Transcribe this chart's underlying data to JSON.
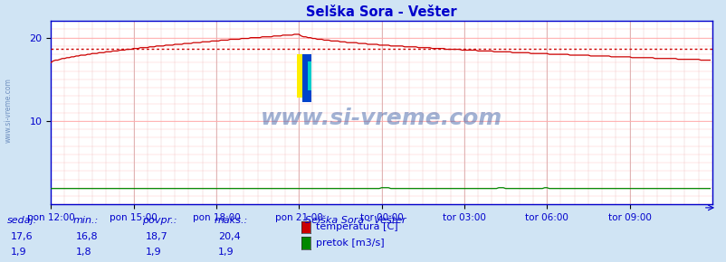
{
  "title": "Selška Sora - Vešter",
  "title_color": "#0000cc",
  "bg_color": "#d0e4f4",
  "plot_bg_color": "#ffffff",
  "grid_color": "#ffaaaa",
  "grid_color_v": "#ddaaaa",
  "watermark": "www.si-vreme.com",
  "watermark_color": "#4466aa",
  "watermark_alpha": 0.5,
  "x_tick_labels": [
    "pon 12:00",
    "pon 15:00",
    "pon 18:00",
    "pon 21:00",
    "tor 00:00",
    "tor 03:00",
    "tor 06:00",
    "tor 09:00"
  ],
  "x_tick_positions": [
    0,
    36,
    72,
    108,
    144,
    180,
    216,
    252
  ],
  "y_ticks": [
    10,
    20
  ],
  "ylim": [
    0,
    22
  ],
  "xlim": [
    0,
    288
  ],
  "avg_line_value": 18.7,
  "avg_line_color": "#cc0000",
  "temp_color": "#cc0000",
  "flow_color": "#008800",
  "legend_title": "Selška Sora - Vešter",
  "legend_title_color": "#0000cc",
  "legend_items": [
    {
      "label": "temperatura [C]",
      "color": "#cc0000"
    },
    {
      "label": "pretok [m3/s]",
      "color": "#008800"
    }
  ],
  "footer_color": "#0000cc",
  "footer_labels": [
    "sedaj:",
    "min.:",
    "povpr.:",
    "maks.:"
  ],
  "footer_vals_row1": [
    "17,6",
    "16,8",
    "18,7",
    "20,4"
  ],
  "footer_vals_row2": [
    "1,9",
    "1,8",
    "1,9",
    "1,9"
  ],
  "axis_tick_color": "#0000cc",
  "border_color": "#0000cc",
  "left_label": "www.si-vreme.com",
  "left_label_color": "#6688bb"
}
